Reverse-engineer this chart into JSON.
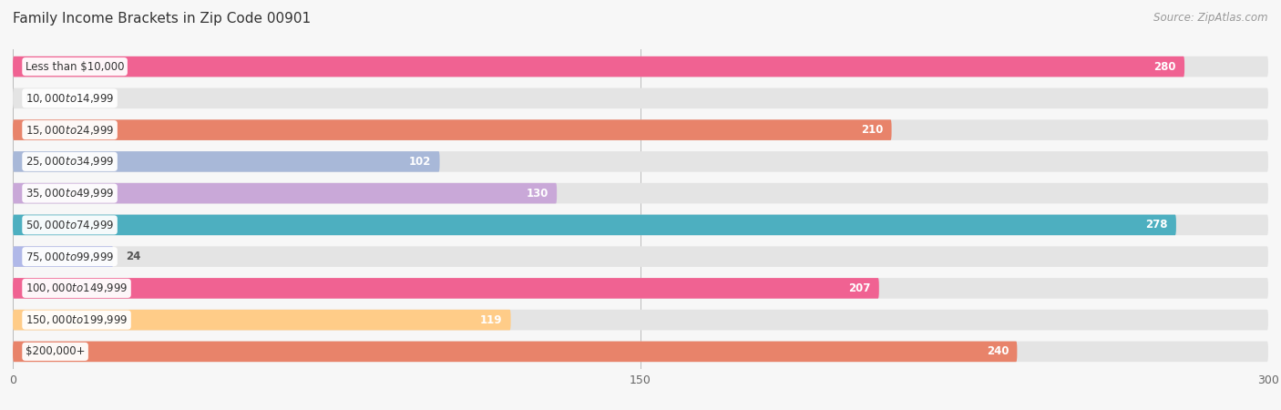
{
  "title": "Family Income Brackets in Zip Code 00901",
  "source": "Source: ZipAtlas.com",
  "categories": [
    "Less than $10,000",
    "$10,000 to $14,999",
    "$15,000 to $24,999",
    "$25,000 to $34,999",
    "$35,000 to $49,999",
    "$50,000 to $74,999",
    "$75,000 to $99,999",
    "$100,000 to $149,999",
    "$150,000 to $199,999",
    "$200,000+"
  ],
  "values": [
    280,
    0,
    210,
    102,
    130,
    278,
    24,
    207,
    119,
    240
  ],
  "bar_colors": [
    "#F06292",
    "#FFCBA4",
    "#E8836A",
    "#A8B8D8",
    "#C9A8D8",
    "#4DAFC0",
    "#B0B8E8",
    "#F06292",
    "#FFCC88",
    "#E8836A"
  ],
  "background_color": "#f7f7f7",
  "bar_bg_color": "#e4e4e4",
  "xlim": [
    0,
    300
  ],
  "xticks": [
    0,
    150,
    300
  ],
  "bar_height": 0.65,
  "title_fontsize": 11,
  "label_fontsize": 8.5,
  "value_fontsize": 8.5,
  "source_fontsize": 8.5
}
